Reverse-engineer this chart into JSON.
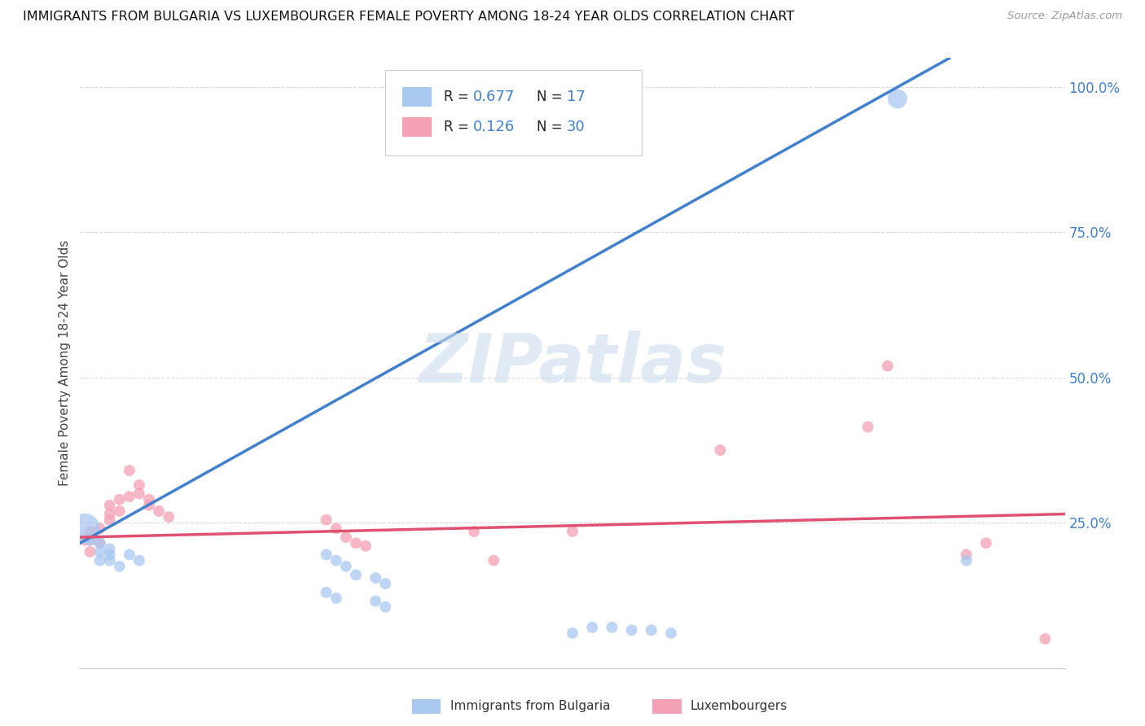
{
  "title": "IMMIGRANTS FROM BULGARIA VS LUXEMBOURGER FEMALE POVERTY AMONG 18-24 YEAR OLDS CORRELATION CHART",
  "source": "Source: ZipAtlas.com",
  "ylabel": "Female Poverty Among 18-24 Year Olds",
  "xlim": [
    0.0,
    0.1
  ],
  "ylim": [
    0.0,
    1.05
  ],
  "color_bulgaria": "#a8c8f0",
  "color_lux": "#f4a0b5",
  "color_line_bulgaria": "#4080cc",
  "color_line_lux": "#e05070",
  "watermark": "ZIPatlas",
  "bg_color": "#ffffff",
  "grid_color": "#d8d8d8",
  "bulgaria_line": [
    [
      0.0,
      0.215
    ],
    [
      0.083,
      1.0
    ]
  ],
  "lux_line": [
    [
      0.0,
      0.225
    ],
    [
      0.1,
      0.265
    ]
  ],
  "bulgaria_points": [
    [
      0.0005,
      0.24
    ],
    [
      0.001,
      0.22
    ],
    [
      0.002,
      0.215
    ],
    [
      0.002,
      0.2
    ],
    [
      0.002,
      0.185
    ],
    [
      0.003,
      0.205
    ],
    [
      0.003,
      0.195
    ],
    [
      0.003,
      0.185
    ],
    [
      0.004,
      0.175
    ],
    [
      0.005,
      0.195
    ],
    [
      0.006,
      0.185
    ],
    [
      0.025,
      0.195
    ],
    [
      0.026,
      0.185
    ],
    [
      0.027,
      0.175
    ],
    [
      0.028,
      0.16
    ],
    [
      0.03,
      0.155
    ],
    [
      0.031,
      0.145
    ],
    [
      0.025,
      0.13
    ],
    [
      0.026,
      0.12
    ],
    [
      0.03,
      0.115
    ],
    [
      0.031,
      0.105
    ],
    [
      0.05,
      0.06
    ],
    [
      0.052,
      0.07
    ],
    [
      0.054,
      0.07
    ],
    [
      0.056,
      0.065
    ],
    [
      0.058,
      0.065
    ],
    [
      0.06,
      0.06
    ],
    [
      0.083,
      0.98
    ],
    [
      0.09,
      0.185
    ]
  ],
  "bulgaria_sizes": [
    700,
    100,
    100,
    100,
    100,
    100,
    100,
    100,
    100,
    100,
    100,
    100,
    100,
    100,
    100,
    100,
    100,
    100,
    100,
    100,
    100,
    100,
    100,
    100,
    100,
    100,
    100,
    300,
    100
  ],
  "lux_points": [
    [
      0.0005,
      0.22
    ],
    [
      0.001,
      0.235
    ],
    [
      0.001,
      0.22
    ],
    [
      0.001,
      0.2
    ],
    [
      0.002,
      0.24
    ],
    [
      0.002,
      0.215
    ],
    [
      0.003,
      0.28
    ],
    [
      0.003,
      0.265
    ],
    [
      0.003,
      0.255
    ],
    [
      0.004,
      0.29
    ],
    [
      0.004,
      0.27
    ],
    [
      0.005,
      0.34
    ],
    [
      0.005,
      0.295
    ],
    [
      0.006,
      0.315
    ],
    [
      0.006,
      0.3
    ],
    [
      0.007,
      0.29
    ],
    [
      0.007,
      0.28
    ],
    [
      0.008,
      0.27
    ],
    [
      0.009,
      0.26
    ],
    [
      0.025,
      0.255
    ],
    [
      0.026,
      0.24
    ],
    [
      0.027,
      0.225
    ],
    [
      0.028,
      0.215
    ],
    [
      0.029,
      0.21
    ],
    [
      0.04,
      0.235
    ],
    [
      0.042,
      0.185
    ],
    [
      0.05,
      0.235
    ],
    [
      0.065,
      0.375
    ],
    [
      0.08,
      0.415
    ],
    [
      0.082,
      0.52
    ],
    [
      0.09,
      0.195
    ],
    [
      0.092,
      0.215
    ],
    [
      0.098,
      0.05
    ]
  ],
  "lux_sizes": [
    100,
    100,
    100,
    100,
    100,
    100,
    100,
    100,
    100,
    100,
    100,
    100,
    100,
    100,
    100,
    100,
    100,
    100,
    100,
    100,
    100,
    100,
    100,
    100,
    100,
    100,
    100,
    100,
    100,
    100,
    100,
    100,
    100
  ]
}
